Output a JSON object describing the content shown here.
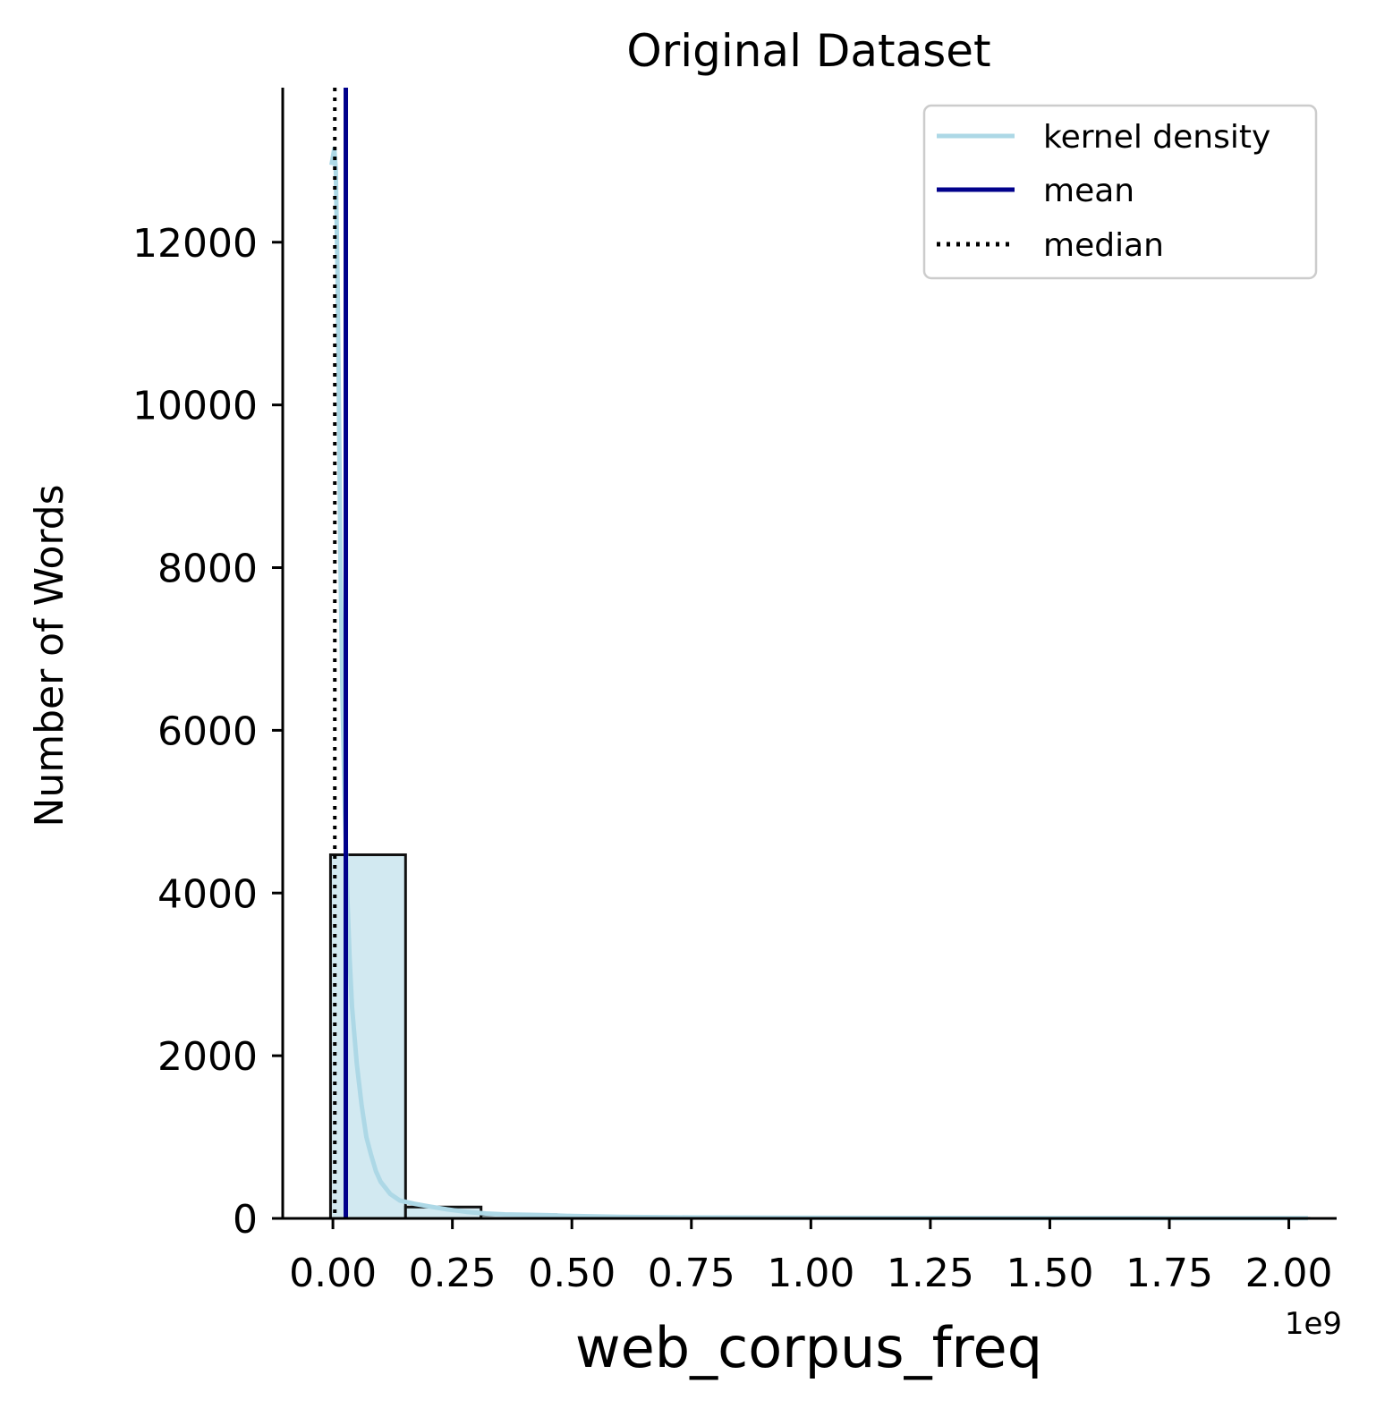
{
  "chart_data": {
    "type": "bar",
    "title": "Original Dataset",
    "xlabel": "web_corpus_freq",
    "ylabel": "Number of Words",
    "x_offset_label": "1e9",
    "xlim": [
      -0.105,
      2.1
    ],
    "ylim": [
      0,
      13900
    ],
    "x_ticks": [
      0.0,
      0.25,
      0.5,
      0.75,
      1.0,
      1.25,
      1.5,
      1.75,
      2.0
    ],
    "x_tick_labels": [
      "0.00",
      "0.25",
      "0.50",
      "0.75",
      "1.00",
      "1.25",
      "1.50",
      "1.75",
      "2.00"
    ],
    "y_ticks": [
      0,
      2000,
      4000,
      6000,
      8000,
      10000,
      12000
    ],
    "y_tick_labels": [
      "0",
      "2000",
      "4000",
      "6000",
      "8000",
      "10000",
      "12000"
    ],
    "bins": [
      {
        "x0": -0.005,
        "x1": 0.152,
        "count": 4470
      },
      {
        "x0": 0.152,
        "x1": 0.31,
        "count": 140
      },
      {
        "x0": 0.31,
        "x1": 0.467,
        "count": 45
      },
      {
        "x0": 0.467,
        "x1": 0.625,
        "count": 15
      },
      {
        "x0": 0.625,
        "x1": 0.782,
        "count": 6
      },
      {
        "x0": 0.782,
        "x1": 0.94,
        "count": 4
      },
      {
        "x0": 0.94,
        "x1": 1.097,
        "count": 2
      },
      {
        "x0": 1.097,
        "x1": 1.255,
        "count": 2
      },
      {
        "x0": 1.255,
        "x1": 1.412,
        "count": 1
      },
      {
        "x0": 1.412,
        "x1": 1.57,
        "count": 1
      },
      {
        "x0": 1.57,
        "x1": 1.727,
        "count": 1
      },
      {
        "x0": 1.727,
        "x1": 1.885,
        "count": 0
      },
      {
        "x0": 1.885,
        "x1": 2.042,
        "count": 1
      }
    ],
    "kde": {
      "x": [
        -0.003,
        0.0,
        0.003,
        0.006,
        0.01,
        0.013,
        0.016,
        0.02,
        0.025,
        0.03,
        0.035,
        0.04,
        0.05,
        0.06,
        0.07,
        0.08,
        0.09,
        0.1,
        0.12,
        0.14,
        0.17,
        0.2,
        0.24,
        0.28,
        0.32,
        0.36,
        0.4,
        0.45,
        0.5,
        0.6,
        0.75,
        1.0,
        1.25,
        1.5,
        1.75,
        2.04
      ],
      "y": [
        12950,
        13050,
        13150,
        12900,
        11500,
        9800,
        8000,
        6400,
        5000,
        4000,
        3200,
        2600,
        1900,
        1400,
        1000,
        780,
        580,
        450,
        300,
        220,
        180,
        150,
        110,
        80,
        60,
        50,
        45,
        40,
        30,
        20,
        12,
        8,
        5,
        4,
        3,
        2
      ]
    },
    "mean": 0.027,
    "median": 0.004,
    "legend": {
      "placement": "top-right",
      "entries": [
        {
          "label": "kernel density",
          "style": "solid",
          "color": "#add8e6"
        },
        {
          "label": "mean",
          "style": "solid",
          "color": "#00008b"
        },
        {
          "label": "median",
          "style": "dotted",
          "color": "#000000"
        }
      ]
    },
    "colors": {
      "bar_fill": "#d2e9f1",
      "bar_edge": "#111111",
      "kde": "#add8e6",
      "mean": "#00008b",
      "median": "#000000"
    }
  }
}
